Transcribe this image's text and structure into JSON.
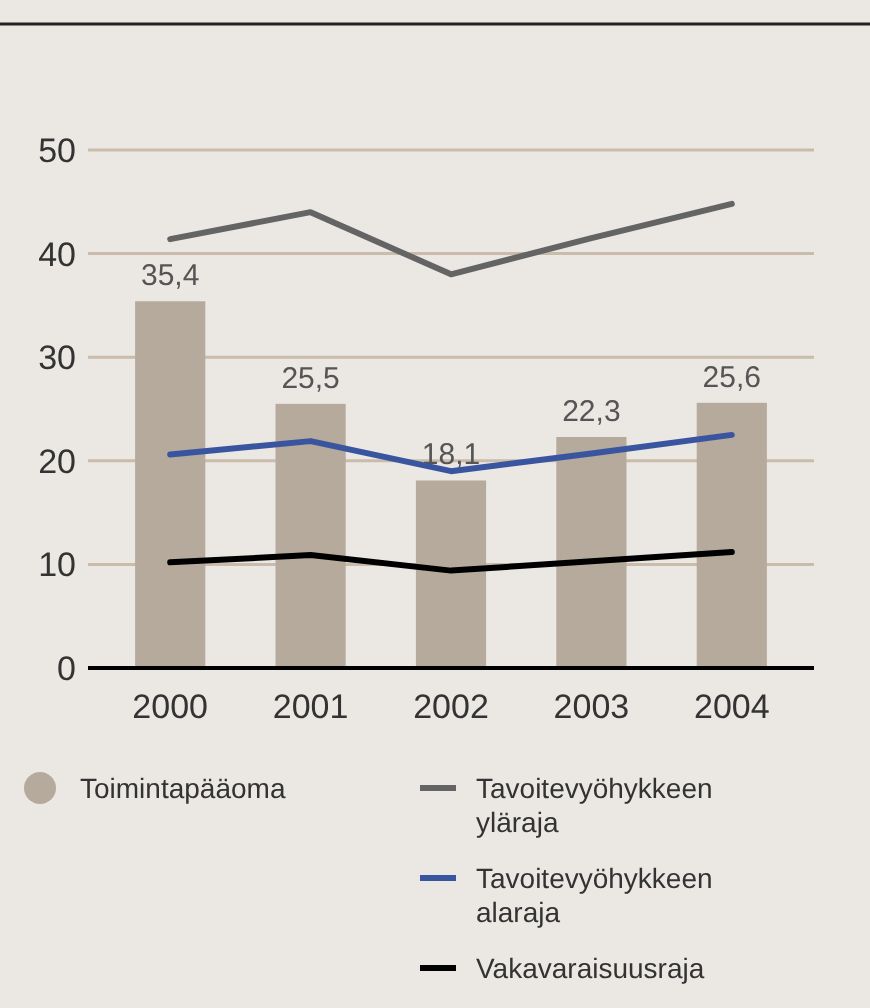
{
  "chart_data": {
    "type": "bar",
    "categories": [
      "2000",
      "2001",
      "2002",
      "2003",
      "2004"
    ],
    "series": [
      {
        "name": "Toimintapääoma",
        "color": "#b5aa9c",
        "values": [
          35.4,
          25.5,
          18.1,
          22.3,
          25.6
        ],
        "value_labels": [
          "35,4",
          "25,5",
          "18,1",
          "22,3",
          "25,6"
        ]
      },
      {
        "type": "line",
        "name": "Tavoitevyöhykkeen yläraja",
        "color": "#646464",
        "values": [
          41.4,
          44.0,
          38.0,
          41.5,
          44.8
        ]
      },
      {
        "type": "line",
        "name": "Tavoitevyöhykkeen alaraja",
        "color": "#3a55a0",
        "values": [
          20.6,
          21.9,
          19.0,
          20.7,
          22.5
        ]
      },
      {
        "type": "line",
        "name": "Vakavaraisuusraja",
        "color": "#000000",
        "values": [
          10.2,
          10.9,
          9.4,
          10.3,
          11.2
        ]
      }
    ],
    "ylim": [
      0,
      50
    ],
    "yticks": [
      0,
      10,
      20,
      30,
      40,
      50
    ],
    "grid": "y",
    "legend": "bottom",
    "marker": "none",
    "line_style": "solid"
  }
}
